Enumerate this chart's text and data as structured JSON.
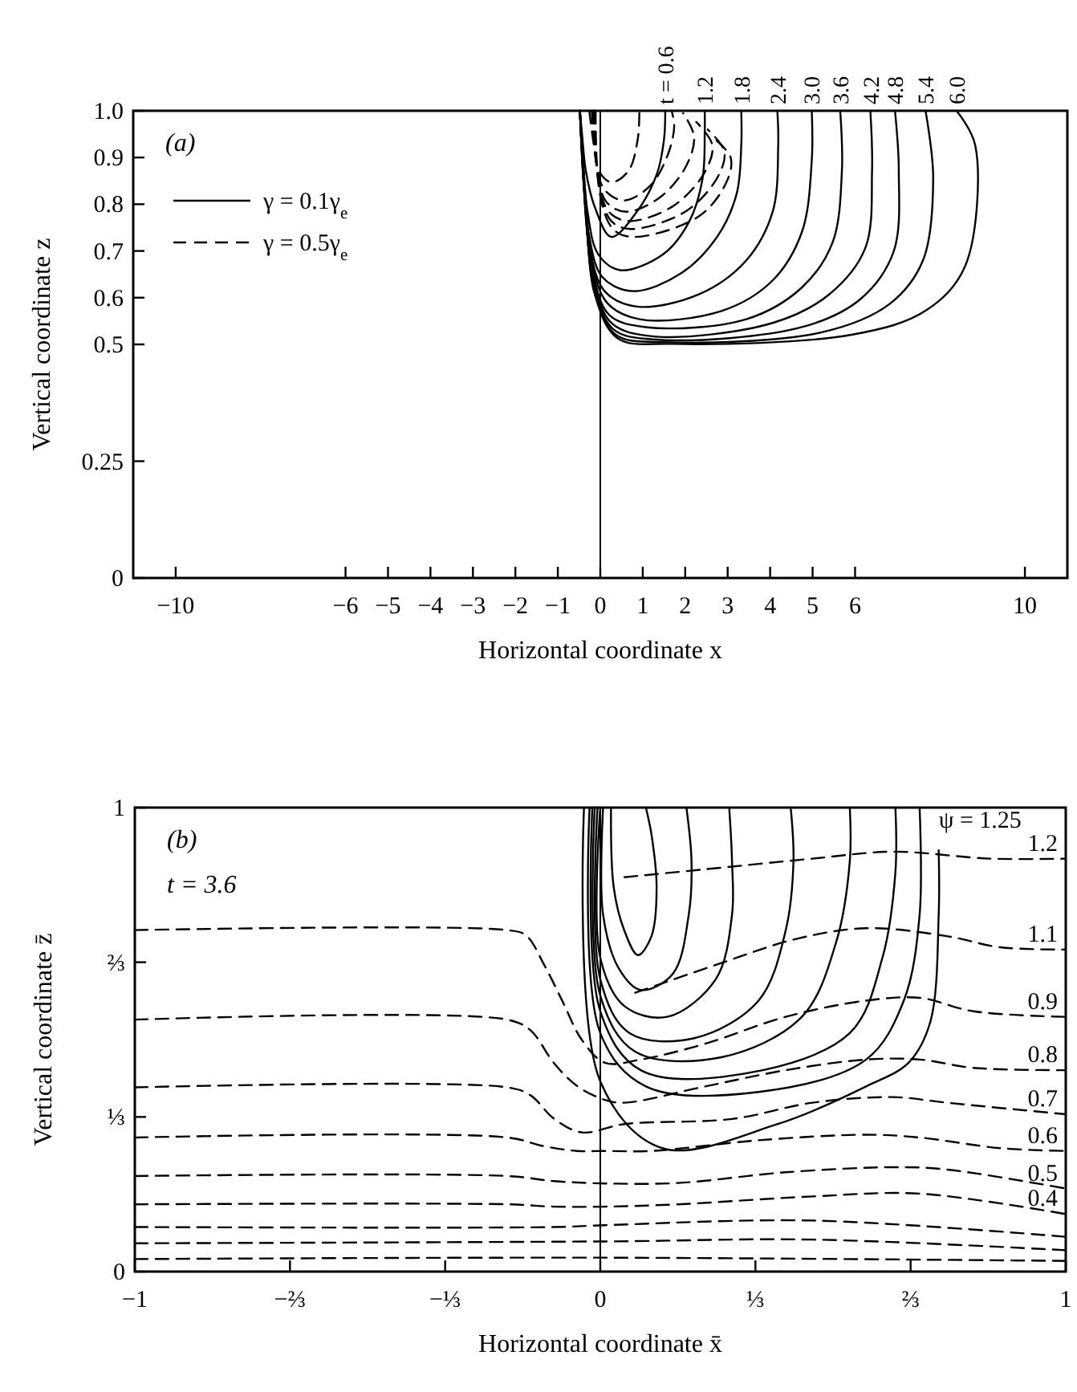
{
  "chart_data": [
    {
      "type": "line",
      "xlabel": "Horizontal coordinate x",
      "ylabel": "Vertical coordinate z",
      "xlim": [
        -11,
        11
      ],
      "ylim": [
        0,
        1
      ],
      "xticks": [
        -10,
        -6,
        -5,
        -4,
        -3,
        -2,
        -1,
        0,
        1,
        2,
        3,
        4,
        5,
        6,
        10
      ],
      "yticks": [
        0,
        0.25,
        0.5,
        0.6,
        0.7,
        0.8,
        0.9,
        {
          "value": 1,
          "label": "1.0"
        }
      ],
      "legend": "top left",
      "grid": false,
      "ref_lines": [
        {
          "axis": "x",
          "value": 0,
          "color": "#000000"
        }
      ],
      "annotations": [
        "(a)",
        {
          "text": "t = 0.6",
          "x": 1.53,
          "y": 1
        },
        {
          "text": "1.2",
          "x": 2.46,
          "y": 1
        },
        {
          "text": "1.8",
          "x": 3.32,
          "y": 1
        },
        {
          "text": "2.4",
          "x": 4.17,
          "y": 1
        },
        {
          "text": "3.0",
          "x": 4.98,
          "y": 1
        },
        {
          "text": "3.6",
          "x": 5.65,
          "y": 1
        },
        {
          "text": "4.2",
          "x": 6.36,
          "y": 1
        },
        {
          "text": "4.8",
          "x": 6.94,
          "y": 1
        },
        {
          "text": "5.4",
          "x": 7.66,
          "y": 1
        },
        {
          "text": "6.0",
          "x": 8.39,
          "y": 1
        }
      ],
      "series": [
        {
          "name": "γ = 0.1γ$_{e}$",
          "color": "#000000",
          "line_style": "solid",
          "x": [
            -0.48,
            -0.43,
            -0.34,
            -0.13,
            0.26,
            0.86,
            1.33,
            1.5,
            1.53
          ],
          "values": [
            1,
            0.95,
            0.871,
            0.794,
            0.73,
            0.784,
            0.864,
            0.938,
            1
          ]
        },
        {
          "color": "#000000",
          "line_style": "solid",
          "x": [
            -0.48,
            -0.41,
            -0.3,
            -0.05,
            0.46,
            1.48,
            2.1,
            2.41,
            2.46,
            2.46
          ],
          "values": [
            1,
            0.893,
            0.784,
            0.693,
            0.659,
            0.693,
            0.764,
            0.856,
            0.955,
            1
          ]
        },
        {
          "color": "#000000",
          "line_style": "solid",
          "x": [
            -0.48,
            -0.4,
            -0.28,
            0.05,
            0.77,
            1.9,
            2.75,
            3.21,
            3.32,
            3.32
          ],
          "values": [
            1,
            0.856,
            0.741,
            0.644,
            0.614,
            0.652,
            0.73,
            0.822,
            0.926,
            1
          ]
        },
        {
          "color": "#000000",
          "line_style": "solid",
          "x": [
            -0.48,
            -0.39,
            -0.26,
            0.1,
            0.86,
            2.32,
            3.44,
            4.06,
            4.19,
            4.17
          ],
          "values": [
            1,
            0.84,
            0.712,
            0.614,
            0.581,
            0.607,
            0.68,
            0.784,
            0.926,
            1
          ]
        },
        {
          "color": "#000000",
          "line_style": "solid",
          "x": [
            -0.48,
            -0.38,
            -0.23,
            0.15,
            0.92,
            2.87,
            4.06,
            4.75,
            4.98,
            4.98
          ],
          "values": [
            1,
            0.831,
            0.693,
            0.59,
            0.554,
            0.572,
            0.637,
            0.741,
            0.893,
            1
          ]
        },
        {
          "color": "#000000",
          "line_style": "solid",
          "x": [
            -0.48,
            -0.37,
            -0.21,
            0.2,
            1.07,
            3.44,
            4.75,
            5.47,
            5.69,
            5.65
          ],
          "values": [
            1,
            0.822,
            0.673,
            0.564,
            0.537,
            0.554,
            0.622,
            0.718,
            0.871,
            1
          ]
        },
        {
          "color": "#000000",
          "line_style": "solid",
          "x": [
            -0.48,
            -0.36,
            -0.19,
            0.26,
            1.27,
            4.06,
            5.39,
            6.24,
            6.4,
            6.36
          ],
          "values": [
            1,
            0.813,
            0.652,
            0.546,
            0.517,
            0.546,
            0.607,
            0.706,
            0.871,
            1
          ]
        },
        {
          "color": "#000000",
          "line_style": "solid",
          "x": [
            -0.48,
            -0.35,
            -0.17,
            0.3,
            1.38,
            4.75,
            6.14,
            6.91,
            7.03,
            6.94
          ],
          "values": [
            1,
            0.804,
            0.637,
            0.533,
            0.51,
            0.537,
            0.598,
            0.699,
            0.871,
            1
          ]
        },
        {
          "color": "#000000",
          "line_style": "solid",
          "x": [
            -0.48,
            -0.34,
            -0.15,
            0.36,
            1.48,
            5.22,
            6.82,
            7.6,
            7.84,
            7.66
          ],
          "values": [
            1,
            0.794,
            0.622,
            0.521,
            0.505,
            0.526,
            0.587,
            0.68,
            0.856,
            1
          ]
        },
        {
          "color": "#000000",
          "line_style": "solid",
          "x": [
            -0.48,
            -0.32,
            -0.13,
            0.41,
            1.68,
            5.94,
            7.66,
            8.59,
            8.83,
            8.39
          ],
          "values": [
            1,
            0.784,
            0.607,
            0.513,
            0.501,
            0.521,
            0.572,
            0.667,
            0.926,
            1
          ]
        },
        {
          "name": "γ = 0.5γ$_{e}$",
          "color": "#000000",
          "line_style": "dashed",
          "x": [
            -0.26,
            -0.15,
            -0.03,
            0.26,
            0.66,
            0.88,
            0.92
          ],
          "values": [
            1,
            0.926,
            0.871,
            0.847,
            0.871,
            0.938,
            1
          ]
        },
        {
          "color": "#000000",
          "line_style": "dashed",
          "x": [
            -0.2,
            -0.1,
            0.1,
            0.56,
            1.18,
            1.59,
            1.74,
            1.68
          ],
          "values": [
            1,
            0.893,
            0.831,
            0.808,
            0.84,
            0.906,
            0.966,
            1
          ]
        },
        {
          "color": "#000000",
          "line_style": "dashed",
          "x": [
            -0.17,
            -0.07,
            0.15,
            0.61,
            1.38,
            2.0,
            2.21,
            1.95
          ],
          "values": [
            1,
            0.871,
            0.804,
            0.784,
            0.813,
            0.878,
            0.944,
            0.995
          ]
        },
        {
          "color": "#000000",
          "line_style": "dashed",
          "x": [
            -0.15,
            -0.05,
            0.2,
            0.66,
            1.68,
            2.43,
            2.64,
            2.26
          ],
          "values": [
            1,
            0.856,
            0.784,
            0.764,
            0.794,
            0.864,
            0.926,
            0.976
          ]
        },
        {
          "color": "#000000",
          "line_style": "dashed",
          "x": [
            -0.13,
            -0.03,
            0.26,
            0.71,
            2.0,
            2.75,
            2.92,
            2.53
          ],
          "values": [
            1,
            0.84,
            0.764,
            0.747,
            0.784,
            0.856,
            0.913,
            0.96
          ]
        },
        {
          "color": "#000000",
          "line_style": "dashed",
          "x": [
            -0.11,
            -0.01,
            0.3,
            0.77,
            2.32,
            2.97,
            3.07,
            2.64
          ],
          "values": [
            1,
            0.822,
            0.747,
            0.73,
            0.774,
            0.847,
            0.9,
            0.944
          ]
        }
      ]
    },
    {
      "type": "line",
      "xlabel": "Horizontal coordinate x̄",
      "ylabel": "Vertical coordinate z̄",
      "xlim": [
        -1,
        1
      ],
      "ylim": [
        0,
        1
      ],
      "xticks": [
        -1,
        {
          "value": -0.6667,
          "label": "−⅔"
        },
        {
          "value": -0.3333,
          "label": "−⅓"
        },
        0,
        {
          "value": 0.3333,
          "label": "⅓"
        },
        {
          "value": 0.6667,
          "label": "⅔"
        },
        1
      ],
      "yticks": [
        0,
        {
          "value": 0.3333,
          "label": "⅓"
        },
        {
          "value": 0.6667,
          "label": "⅔"
        },
        1
      ],
      "legend": false,
      "grid": false,
      "ref_lines": [
        {
          "axis": "x",
          "value": 0,
          "color": "#000000"
        }
      ],
      "annotations": [
        "(b)",
        "t = 3.6",
        {
          "text": "ψ = 1.25",
          "x": 0.727,
          "y": 0.908
        }
      ],
      "series": [
        {
          "color": "#000000",
          "line_style": "solid",
          "x": [
            0.023,
            0.029,
            0.052,
            0.081,
            0.11,
            0.121,
            0.11,
            0.098
          ],
          "values": [
            1,
            0.827,
            0.734,
            0.682,
            0.723,
            0.827,
            0.942,
            1
          ]
        },
        {
          "color": "#000000",
          "line_style": "solid",
          "x": [
            0.006,
            0.006,
            0.04,
            0.087,
            0.156,
            0.19,
            0.196,
            0.185
          ],
          "values": [
            1,
            0.769,
            0.653,
            0.607,
            0.642,
            0.769,
            0.884,
            1
          ]
        },
        {
          "color": "#000000",
          "line_style": "solid",
          "x": [
            0,
            0,
            0.052,
            0.144,
            0.248,
            0.283,
            0.283,
            0.277
          ],
          "values": [
            1,
            0.676,
            0.572,
            0.549,
            0.63,
            0.769,
            0.884,
            1
          ]
        },
        {
          "color": "#000000",
          "line_style": "solid",
          "x": [
            -0.006,
            0,
            0.063,
            0.202,
            0.34,
            0.398,
            0.415,
            0.409
          ],
          "values": [
            1,
            0.63,
            0.514,
            0.503,
            0.584,
            0.734,
            0.884,
            1
          ]
        },
        {
          "color": "#000000",
          "line_style": "solid",
          "x": [
            -0.012,
            0,
            0.075,
            0.26,
            0.433,
            0.507,
            0.536,
            0.536
          ],
          "values": [
            1,
            0.595,
            0.474,
            0.462,
            0.549,
            0.711,
            0.884,
            1
          ]
        },
        {
          "color": "#000000",
          "line_style": "solid",
          "x": [
            -0.017,
            0,
            0.087,
            0.317,
            0.536,
            0.606,
            0.634,
            0.634
          ],
          "values": [
            1,
            0.561,
            0.434,
            0.428,
            0.514,
            0.676,
            0.861,
            1
          ]
        },
        {
          "color": "#000000",
          "line_style": "solid",
          "x": [
            -0.023,
            0,
            0.098,
            0.34,
            0.571,
            0.652,
            0.686,
            0.686
          ],
          "values": [
            1,
            0.514,
            0.399,
            0.387,
            0.457,
            0.584,
            0.769,
            1
          ]
        },
        {
          "color": "#000000",
          "line_style": "solid",
          "x": [
            -0.035,
            0,
            0.133,
            0.381,
            0.571,
            0.663,
            0.709,
            0.727,
            0.727
          ],
          "values": [
            1,
            0.41,
            0.266,
            0.318,
            0.399,
            0.451,
            0.538,
            0.769,
            0.908
          ]
        },
        {
          "name": "1.2",
          "color": "#000000",
          "line_style": "dashed",
          "x": [
            0.052,
            0.225,
            0.456,
            0.629,
            0.836,
            1
          ],
          "values": [
            0.85,
            0.867,
            0.89,
            0.905,
            0.89,
            0.89
          ]
        },
        {
          "name": "1.1",
          "color": "#000000",
          "line_style": "dashed",
          "x": [
            0.075,
            0.26,
            0.421,
            0.571,
            0.744,
            0.859,
            1
          ],
          "values": [
            0.601,
            0.665,
            0.717,
            0.74,
            0.723,
            0.699,
            0.694
          ]
        },
        {
          "name": "0.9",
          "color": "#000000",
          "line_style": "dashed",
          "x": [
            -1,
            -0.2,
            -0.16,
            -0.12,
            -0.08,
            -0.04,
            0.01,
            0.087,
            0.225,
            0.398,
            0.571,
            0.686,
            0.802,
            1
          ],
          "values": [
            0.736,
            0.736,
            0.725,
            0.66,
            0.58,
            0.5,
            0.45,
            0.457,
            0.491,
            0.549,
            0.584,
            0.59,
            0.561,
            0.549
          ]
        },
        {
          "name": "0.8",
          "color": "#000000",
          "line_style": "dashed",
          "x": [
            -1,
            -0.2,
            -0.15,
            -0.1,
            -0.05,
            0.01,
            0.052,
            0.225,
            0.398,
            0.571,
            0.686,
            0.802,
            1
          ],
          "values": [
            0.543,
            0.543,
            0.52,
            0.45,
            0.4,
            0.37,
            0.364,
            0.399,
            0.434,
            0.457,
            0.457,
            0.439,
            0.434
          ]
        },
        {
          "name": "0.7",
          "color": "#000000",
          "line_style": "dashed",
          "x": [
            -1,
            -0.2,
            -0.15,
            -0.1,
            -0.04,
            0.052,
            0.283,
            0.456,
            0.629,
            0.744,
            1
          ],
          "values": [
            0.397,
            0.397,
            0.38,
            0.33,
            0.3,
            0.318,
            0.329,
            0.364,
            0.376,
            0.364,
            0.339
          ]
        },
        {
          "name": "0.6",
          "color": "#000000",
          "line_style": "dashed",
          "x": [
            -1,
            -0.2,
            -0.12,
            -0.05,
            0.01,
            0.11,
            0.34,
            0.571,
            0.686,
            0.859,
            1
          ],
          "values": [
            0.289,
            0.289,
            0.27,
            0.26,
            0.26,
            0.26,
            0.283,
            0.295,
            0.289,
            0.266,
            0.26
          ]
        },
        {
          "name": "0.5",
          "color": "#000000",
          "line_style": "dashed",
          "x": [
            -1,
            -0.2,
            -0.1,
            0.01,
            0.167,
            0.398,
            0.629,
            0.744,
            1
          ],
          "values": [
            0.206,
            0.206,
            0.195,
            0.19,
            0.191,
            0.214,
            0.225,
            0.22,
            0.179
          ]
        },
        {
          "name": "0.4",
          "color": "#000000",
          "line_style": "dashed",
          "x": [
            -1,
            -0.2,
            -0.1,
            0.01,
            0.167,
            0.456,
            0.686,
            1
          ],
          "values": [
            0.145,
            0.145,
            0.14,
            0.14,
            0.145,
            0.162,
            0.168,
            0.124
          ]
        },
        {
          "color": "#000000",
          "line_style": "dashed",
          "x": [
            -1,
            -0.1,
            0.01,
            0.456,
            1
          ],
          "values": [
            0.096,
            0.096,
            0.1,
            0.11,
            0.075
          ]
        },
        {
          "color": "#000000",
          "line_style": "dashed",
          "x": [
            -1,
            0.01,
            0.456,
            1
          ],
          "values": [
            0.061,
            0.065,
            0.069,
            0.046
          ]
        },
        {
          "color": "#000000",
          "line_style": "dashed",
          "x": [
            -1,
            0.01,
            1
          ],
          "values": [
            0.027,
            0.03,
            0.023
          ]
        }
      ]
    }
  ]
}
